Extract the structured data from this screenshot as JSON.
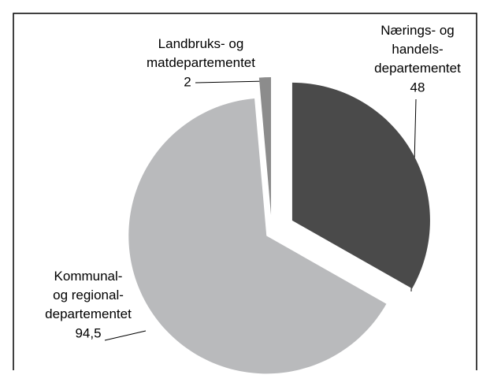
{
  "chart_data": {
    "type": "pie",
    "categories": [
      "Nærings- og\nhandels-\ndepartementet",
      "Kommunal-\nog regional-\ndepartementet",
      "Landbruks- og\nmatdepartementet"
    ],
    "values": [
      48,
      94.5,
      2
    ],
    "value_labels": [
      "48",
      "94,5",
      "2"
    ],
    "colors": [
      "#4a4a4a",
      "#b9babc",
      "#8c8c8c"
    ]
  }
}
